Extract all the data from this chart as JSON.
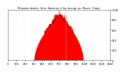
{
  "title": "Milwaukee Weather Solar Radiation & Day Average per Minute (Today)",
  "bg_color": "#ffffff",
  "plot_bg_color": "#ffffff",
  "fill_color": "#ff0000",
  "line_color": "#cc0000",
  "vline_color": "#aaaaaa",
  "grid_color": "#dddddd",
  "num_minutes": 1440,
  "sunrise": 370,
  "sunset": 1060,
  "peak_minute": 730,
  "peak_value": 880,
  "vline_minute": 810,
  "ylim": [
    0,
    1000
  ],
  "xlim": [
    0,
    1440
  ],
  "ytick_values": [
    0,
    200,
    400,
    600,
    800,
    1000
  ],
  "xtick_step": 120
}
